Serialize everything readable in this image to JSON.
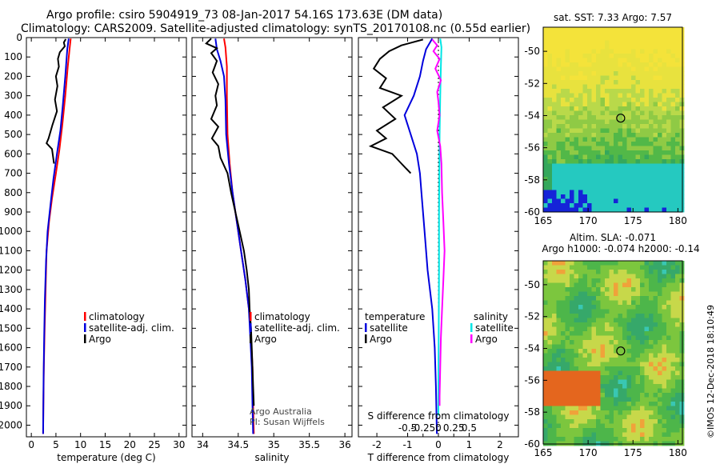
{
  "header": {
    "line1": "Argo profile: csiro 5904919_73 08-Jan-2017 54.16S 173.63E (DM data)",
    "line2": "Climatology: CARS2009. Satellite-adjusted climatology: synTS_20170108.nc (0.55d earlier)"
  },
  "depth_axis": {
    "ticks": [
      0,
      100,
      200,
      300,
      400,
      500,
      600,
      700,
      800,
      900,
      1000,
      1100,
      1200,
      1300,
      1400,
      1500,
      1600,
      1700,
      1800,
      1900,
      2000
    ],
    "range": [
      0,
      2060
    ]
  },
  "footer_text": {
    "credit1": "Argo Australia",
    "credit2": "PI: Susan Wijffels",
    "imos": "©IMOS 12-Dec-2018 18:10:49"
  },
  "colors": {
    "climatology": "#ff0000",
    "satellite": "#0000dd",
    "argo": "#000000",
    "sal_satellite": "#00e5e5",
    "sal_argo": "#ff00ff"
  },
  "chart_data": [
    {
      "type": "line",
      "panel": "temperature",
      "xlabel": "temperature (deg C)",
      "xlim": [
        -1,
        31.5
      ],
      "xticks": [
        0,
        5,
        10,
        15,
        20,
        25,
        30
      ],
      "legend": [
        "climatology",
        "satellite-adj. clim.",
        "Argo"
      ],
      "series": [
        {
          "name": "climatology",
          "color": "#ff0000",
          "points": [
            [
              8.0,
              5
            ],
            [
              7.8,
              50
            ],
            [
              7.4,
              150
            ],
            [
              6.9,
              300
            ],
            [
              6.3,
              450
            ],
            [
              5.7,
              580
            ],
            [
              5.0,
              700
            ],
            [
              4.2,
              830
            ],
            [
              3.6,
              950
            ],
            [
              3.1,
              1100
            ],
            [
              2.9,
              1300
            ],
            [
              2.7,
              1500
            ],
            [
              2.55,
              1700
            ],
            [
              2.45,
              1900
            ],
            [
              2.4,
              2045
            ]
          ]
        },
        {
          "name": "satellite-adj. clim.",
          "color": "#0000dd",
          "points": [
            [
              7.6,
              5
            ],
            [
              7.3,
              60
            ],
            [
              6.9,
              200
            ],
            [
              6.4,
              350
            ],
            [
              5.9,
              480
            ],
            [
              5.2,
              600
            ],
            [
              4.5,
              730
            ],
            [
              3.9,
              860
            ],
            [
              3.3,
              1000
            ],
            [
              3.0,
              1150
            ],
            [
              2.75,
              1350
            ],
            [
              2.6,
              1550
            ],
            [
              2.5,
              1750
            ],
            [
              2.4,
              2045
            ]
          ]
        },
        {
          "name": "Argo",
          "color": "#000000",
          "points": [
            [
              7.0,
              8
            ],
            [
              6.6,
              25
            ],
            [
              6.8,
              45
            ],
            [
              5.8,
              75
            ],
            [
              5.4,
              110
            ],
            [
              5.6,
              150
            ],
            [
              5.0,
              200
            ],
            [
              5.3,
              250
            ],
            [
              4.8,
              320
            ],
            [
              5.2,
              380
            ],
            [
              4.3,
              450
            ],
            [
              3.5,
              520
            ],
            [
              3.1,
              545
            ],
            [
              4.2,
              575
            ],
            [
              4.6,
              650
            ]
          ]
        }
      ]
    },
    {
      "type": "line",
      "panel": "salinity",
      "xlabel": "salinity",
      "xlim": [
        33.85,
        36.1
      ],
      "xticks": [
        34,
        34.5,
        35,
        35.5,
        36
      ],
      "xtick_labels": [
        "34",
        "34.5",
        "35",
        "35.5",
        "36"
      ],
      "legend": [
        "climatology",
        "satellite-adj. clim.",
        "Argo"
      ],
      "series": [
        {
          "name": "climatology",
          "color": "#ff0000",
          "points": [
            [
              34.3,
              5
            ],
            [
              34.32,
              50
            ],
            [
              34.34,
              150
            ],
            [
              34.34,
              300
            ],
            [
              34.35,
              500
            ],
            [
              34.38,
              650
            ],
            [
              34.42,
              800
            ],
            [
              34.48,
              950
            ],
            [
              34.54,
              1100
            ],
            [
              34.6,
              1250
            ],
            [
              34.65,
              1400
            ],
            [
              34.68,
              1550
            ],
            [
              34.7,
              1700
            ],
            [
              34.71,
              1900
            ],
            [
              34.72,
              2045
            ]
          ]
        },
        {
          "name": "satellite-adj. clim.",
          "color": "#0000dd",
          "points": [
            [
              34.18,
              5
            ],
            [
              34.2,
              60
            ],
            [
              34.25,
              120
            ],
            [
              34.3,
              200
            ],
            [
              34.32,
              320
            ],
            [
              34.33,
              500
            ],
            [
              34.37,
              650
            ],
            [
              34.42,
              800
            ],
            [
              34.48,
              950
            ],
            [
              34.54,
              1100
            ],
            [
              34.6,
              1250
            ],
            [
              34.65,
              1400
            ],
            [
              34.67,
              1550
            ],
            [
              34.69,
              1700
            ],
            [
              34.7,
              1900
            ],
            [
              34.71,
              2045
            ]
          ]
        },
        {
          "name": "Argo",
          "color": "#000000",
          "points": [
            [
              34.12,
              5
            ],
            [
              34.05,
              30
            ],
            [
              34.2,
              55
            ],
            [
              34.12,
              80
            ],
            [
              34.2,
              120
            ],
            [
              34.14,
              180
            ],
            [
              34.22,
              240
            ],
            [
              34.18,
              300
            ],
            [
              34.2,
              350
            ],
            [
              34.12,
              420
            ],
            [
              34.22,
              460
            ],
            [
              34.13,
              520
            ],
            [
              34.22,
              560
            ],
            [
              34.25,
              620
            ],
            [
              34.35,
              700
            ],
            [
              34.4,
              800
            ],
            [
              34.46,
              900
            ],
            [
              34.52,
              1000
            ],
            [
              34.58,
              1100
            ],
            [
              34.62,
              1200
            ],
            [
              34.65,
              1300
            ],
            [
              34.66,
              1400
            ],
            [
              34.68,
              1500
            ],
            [
              34.69,
              1600
            ],
            [
              34.7,
              1700
            ],
            [
              34.71,
              1800
            ],
            [
              34.72,
              1900
            ]
          ]
        }
      ]
    },
    {
      "type": "line",
      "panel": "difference",
      "xlabel": "T difference from climatology",
      "xlim": [
        -2.6,
        2.6
      ],
      "xticks": [
        -2,
        -1,
        0,
        1,
        2
      ],
      "top_axis_label": "S difference from climatology",
      "top_ticks": [
        -0.5,
        -0.25,
        0,
        0.25,
        0.5
      ],
      "top_tick_labels": [
        "-0.5",
        "-0.25",
        "0",
        "0.25",
        "0.5"
      ],
      "legend_left_title": "temperature",
      "legend_right_title": "salinity",
      "legend": [
        "satellite",
        "Argo"
      ],
      "series": [
        {
          "name": "T satellite",
          "color": "#0000dd",
          "points": [
            [
              -0.2,
              5
            ],
            [
              -0.4,
              60
            ],
            [
              -0.5,
              120
            ],
            [
              -0.6,
              200
            ],
            [
              -0.8,
              300
            ],
            [
              -1.1,
              400
            ],
            [
              -0.9,
              500
            ],
            [
              -0.7,
              600
            ],
            [
              -0.6,
              700
            ],
            [
              -0.55,
              800
            ],
            [
              -0.45,
              1000
            ],
            [
              -0.35,
              1200
            ],
            [
              -0.2,
              1400
            ],
            [
              -0.12,
              1600
            ],
            [
              -0.08,
              1800
            ],
            [
              -0.05,
              2045
            ]
          ]
        },
        {
          "name": "T Argo",
          "color": "#000000",
          "points": [
            [
              -0.5,
              10
            ],
            [
              -1.2,
              40
            ],
            [
              -1.6,
              70
            ],
            [
              -1.9,
              110
            ],
            [
              -2.1,
              160
            ],
            [
              -1.7,
              210
            ],
            [
              -1.9,
              260
            ],
            [
              -1.2,
              300
            ],
            [
              -1.8,
              360
            ],
            [
              -1.4,
              420
            ],
            [
              -2.0,
              480
            ],
            [
              -1.7,
              520
            ],
            [
              -2.2,
              560
            ],
            [
              -1.5,
              600
            ],
            [
              -1.2,
              650
            ],
            [
              -0.9,
              700
            ]
          ]
        },
        {
          "name": "S satellite",
          "color": "#00e5e5",
          "points": [
            [
              0.03,
              5
            ],
            [
              0.05,
              50
            ],
            [
              0.04,
              150
            ],
            [
              0.03,
              300
            ],
            [
              0.02,
              500
            ],
            [
              0.015,
              700
            ],
            [
              0.01,
              900
            ],
            [
              0.01,
              1200
            ],
            [
              0.005,
              1500
            ],
            [
              0.0,
              1800
            ],
            [
              0.0,
              1950
            ]
          ]
        },
        {
          "name": "S Argo",
          "color": "#ff00ff",
          "points": [
            [
              -0.1,
              10
            ],
            [
              -0.02,
              40
            ],
            [
              -0.08,
              70
            ],
            [
              0.02,
              110
            ],
            [
              -0.05,
              160
            ],
            [
              0.04,
              220
            ],
            [
              -0.02,
              280
            ],
            [
              0.0,
              330
            ],
            [
              0.02,
              400
            ],
            [
              -0.02,
              480
            ],
            [
              0.03,
              560
            ],
            [
              0.05,
              650
            ],
            [
              0.06,
              800
            ],
            [
              0.08,
              950
            ],
            [
              0.1,
              1100
            ],
            [
              0.08,
              1250
            ],
            [
              0.06,
              1400
            ],
            [
              0.04,
              1550
            ],
            [
              0.03,
              1700
            ],
            [
              0.02,
              1850
            ],
            [
              0.02,
              1900
            ]
          ]
        }
      ]
    },
    {
      "type": "heatmap",
      "panel": "sst_map",
      "title": "sat. SST: 7.33 Argo: 7.57",
      "xlim": [
        165,
        180.5
      ],
      "ylim": [
        -60,
        -48.5
      ],
      "xticks": [
        165,
        170,
        175,
        180
      ],
      "yticks": [
        -50,
        -52,
        -54,
        -56,
        -58,
        -60
      ],
      "marker": [
        173.63,
        -54.16
      ]
    },
    {
      "type": "heatmap",
      "panel": "sla_map",
      "title1": "Altim. SLA: -0.071",
      "title2": "Argo h1000: -0.074 h2000: -0.14",
      "xlim": [
        165,
        180.5
      ],
      "ylim": [
        -60,
        -48.5
      ],
      "xticks": [
        165,
        170,
        175,
        180
      ],
      "yticks": [
        -50,
        -52,
        -54,
        -56,
        -58,
        -60
      ],
      "marker": [
        173.63,
        -54.16
      ]
    }
  ]
}
